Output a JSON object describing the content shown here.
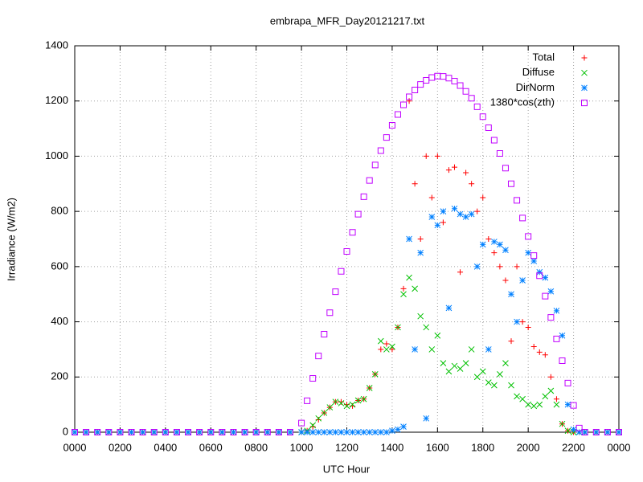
{
  "chart_data": {
    "type": "scatter",
    "title": "embrapa_MFR_Day20121217.txt",
    "x_label": "UTC Hour",
    "y_label": "Irradiance (W/m2)",
    "xlim": [
      0,
      24
    ],
    "ylim": [
      0,
      1400
    ],
    "xticks": [
      {
        "value": 0,
        "label": "0000"
      },
      {
        "value": 2,
        "label": "0200"
      },
      {
        "value": 4,
        "label": "0400"
      },
      {
        "value": 6,
        "label": "0600"
      },
      {
        "value": 8,
        "label": "0800"
      },
      {
        "value": 10,
        "label": "1000"
      },
      {
        "value": 12,
        "label": "1200"
      },
      {
        "value": 14,
        "label": "1400"
      },
      {
        "value": 16,
        "label": "1600"
      },
      {
        "value": 18,
        "label": "1800"
      },
      {
        "value": 20,
        "label": "2000"
      },
      {
        "value": 22,
        "label": "2200"
      },
      {
        "value": 24,
        "label": "0000"
      }
    ],
    "yticks": [
      0,
      200,
      400,
      600,
      800,
      1000,
      1200,
      1400
    ],
    "grid": true,
    "legend": "top-right",
    "x": [
      0,
      0.5,
      1,
      1.5,
      2,
      2.5,
      3,
      3.5,
      4,
      4.5,
      5,
      5.5,
      6,
      6.5,
      7,
      7.5,
      8,
      8.5,
      9,
      9.5,
      10,
      10.25,
      10.5,
      10.75,
      11,
      11.25,
      11.5,
      11.75,
      12,
      12.25,
      12.5,
      12.75,
      13,
      13.25,
      13.5,
      13.75,
      14,
      14.25,
      14.5,
      14.75,
      15,
      15.25,
      15.5,
      15.75,
      16,
      16.25,
      16.5,
      16.75,
      17,
      17.25,
      17.5,
      17.75,
      18,
      18.25,
      18.5,
      18.75,
      19,
      19.25,
      19.5,
      19.75,
      20,
      20.25,
      20.5,
      20.75,
      21,
      21.25,
      21.5,
      21.75,
      22,
      22.25,
      22.5,
      23,
      23.5,
      24
    ],
    "series": [
      {
        "name": "Total",
        "color": "#ff0000",
        "marker": "plus",
        "values": [
          0,
          0,
          0,
          0,
          0,
          0,
          0,
          0,
          0,
          0,
          0,
          0,
          0,
          0,
          0,
          0,
          0,
          0,
          0,
          0,
          0,
          5,
          20,
          45,
          70,
          90,
          110,
          110,
          100,
          95,
          115,
          120,
          160,
          210,
          300,
          320,
          300,
          380,
          520,
          1200,
          900,
          700,
          1000,
          850,
          1000,
          760,
          950,
          960,
          580,
          940,
          900,
          800,
          850,
          700,
          650,
          600,
          550,
          330,
          600,
          400,
          380,
          310,
          290,
          280,
          200,
          120,
          30,
          5,
          0,
          0,
          0,
          0,
          0,
          0
        ]
      },
      {
        "name": "Diffuse",
        "color": "#00c000",
        "marker": "cross",
        "values": [
          0,
          0,
          0,
          0,
          0,
          0,
          0,
          0,
          0,
          0,
          0,
          0,
          0,
          0,
          0,
          0,
          0,
          0,
          0,
          0,
          0,
          5,
          25,
          50,
          70,
          90,
          110,
          105,
          95,
          100,
          115,
          120,
          160,
          210,
          330,
          300,
          310,
          380,
          500,
          560,
          520,
          420,
          380,
          300,
          350,
          250,
          220,
          240,
          230,
          250,
          300,
          200,
          220,
          180,
          170,
          210,
          250,
          170,
          130,
          120,
          100,
          95,
          100,
          130,
          150,
          100,
          30,
          5,
          0,
          0,
          0,
          0,
          0,
          0
        ]
      },
      {
        "name": "DirNorm",
        "color": "#0080ff",
        "marker": "star",
        "values": [
          0,
          0,
          0,
          0,
          0,
          0,
          0,
          0,
          0,
          0,
          0,
          0,
          0,
          0,
          0,
          0,
          0,
          0,
          0,
          0,
          0,
          0,
          0,
          0,
          0,
          0,
          0,
          0,
          0,
          0,
          0,
          0,
          0,
          0,
          0,
          0,
          5,
          10,
          20,
          700,
          300,
          650,
          50,
          780,
          750,
          800,
          450,
          810,
          790,
          780,
          790,
          600,
          680,
          300,
          690,
          680,
          660,
          500,
          400,
          550,
          650,
          620,
          580,
          560,
          510,
          440,
          350,
          100,
          10,
          0,
          0,
          0,
          0,
          0
        ]
      },
      {
        "name": "1380*cos(zth)",
        "color": "#c000ff",
        "marker": "square",
        "values": [
          0,
          0,
          0,
          0,
          0,
          0,
          0,
          0,
          0,
          0,
          0,
          0,
          0,
          0,
          0,
          0,
          0,
          0,
          0,
          0,
          33,
          114,
          195,
          276,
          355,
          433,
          509,
          583,
          655,
          724,
          790,
          853,
          912,
          968,
          1020,
          1068,
          1112,
          1151,
          1186,
          1215,
          1240,
          1260,
          1275,
          1285,
          1290,
          1289,
          1283,
          1272,
          1256,
          1235,
          1210,
          1179,
          1143,
          1103,
          1058,
          1010,
          957,
          900,
          840,
          776,
          709,
          640,
          567,
          493,
          416,
          338,
          259,
          178,
          97,
          15,
          0,
          0,
          0,
          0
        ]
      }
    ]
  }
}
